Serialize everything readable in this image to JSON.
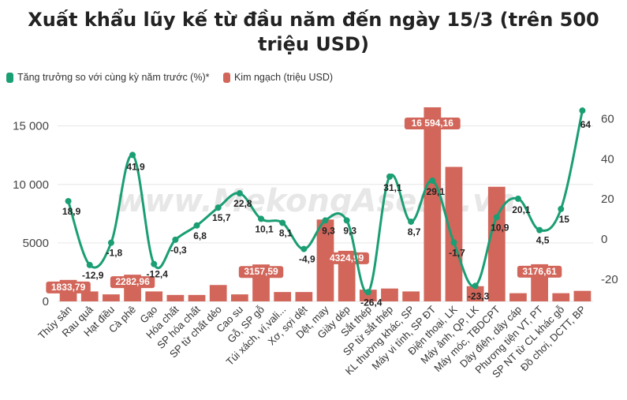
{
  "title": "Xuất khẩu lũy kế từ đầu năm đến ngày 15/3 (trên 500 triệu USD)",
  "watermark": "www.MekongAsean.vn",
  "colors": {
    "line": "#1a9e74",
    "bar": "#d2665a",
    "grid": "#e6e6e6"
  },
  "chart_data": {
    "type": "bar",
    "categories": [
      "Thủy sản",
      "Rau quả",
      "Hạt điều",
      "Cà phê",
      "Gạo",
      "Hóa chất",
      "SP hóa chất",
      "SP từ chất dẻo",
      "Cao su",
      "Gỗ, SP gỗ",
      "Túi xách, ví,vali...",
      "Xơ, sợi dệt",
      "Dệt, may",
      "Giày dép",
      "Sắt thép",
      "SP từ sắt thép",
      "KL thường khác, SP",
      "Máy vi tính, SP ĐT",
      "Điện thoại, LK",
      "Máy ảnh, QP, LK",
      "Máy móc, TBDCPT",
      "Dây điện, dây cáp",
      "Phương tiện VT, PT",
      "SP NT từ CL khác gỗ",
      "Đồ chơi, DCTT, BP"
    ],
    "series": [
      {
        "name": "Kim ngạch (triệu USD)",
        "type": "bar",
        "axis": "left",
        "values": [
          1833.79,
          850,
          600,
          2282.96,
          850,
          550,
          550,
          1400,
          600,
          3157.59,
          800,
          800,
          7000,
          4324.99,
          1000,
          1100,
          850,
          16594.16,
          11500,
          1300,
          9800,
          700,
          3176.61,
          700,
          900
        ],
        "labels": [
          "1833,79",
          "",
          "",
          "2282,96",
          "",
          "",
          "",
          "",
          "",
          "3157,59",
          "",
          "",
          "",
          "4324,99",
          "",
          "",
          "",
          "16 594,16",
          "",
          "",
          "",
          "",
          "3176,61",
          "",
          ""
        ]
      },
      {
        "name": "Tăng trưởng so với cùng kỳ năm trước (%)*",
        "type": "line",
        "axis": "right",
        "values": [
          18.9,
          -12.9,
          -1.8,
          41.9,
          -12.4,
          -0.3,
          6.8,
          15.7,
          22.8,
          10.1,
          8.1,
          -4.9,
          9.3,
          9.3,
          -26.4,
          31.1,
          8.7,
          29.1,
          -1.7,
          -23.3,
          10.9,
          20.1,
          4.5,
          15,
          64
        ],
        "labels": [
          "18,9",
          "-12,9",
          "-1,8",
          "41,9",
          "-12,4",
          "-0,3",
          "6,8",
          "15,7",
          "22,8",
          "10,1",
          "8,1",
          "-4,9",
          "9,3",
          "9,3",
          "-26,4",
          "31,1",
          "8,7",
          "29,1",
          "-1,7",
          "-23,3",
          "10,9",
          "20,1",
          "4,5",
          "15",
          "64"
        ]
      }
    ],
    "y_left": {
      "ticks": [
        0,
        5000,
        10000,
        15000
      ],
      "tick_labels": [
        "0",
        "5000",
        "10 000",
        "15 000"
      ],
      "range": [
        0,
        17000
      ]
    },
    "y_right": {
      "ticks": [
        -20,
        0,
        20,
        40,
        60
      ],
      "tick_labels": [
        "-20",
        "0",
        "20",
        "40",
        "60"
      ],
      "range": [
        -31,
        68
      ]
    },
    "grid": true,
    "legend_position": "top-left"
  }
}
